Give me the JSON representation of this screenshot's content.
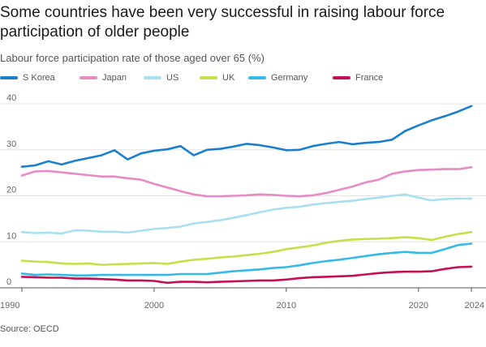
{
  "chart_data": {
    "type": "line",
    "title": "Some countries have been very successful in raising labour force participation of older people",
    "subtitle": "Labour force participation rate of those aged over 65 (%)",
    "source": "Source: OECD",
    "xlim": [
      1990,
      2024
    ],
    "ylim": [
      0,
      40
    ],
    "x_ticks": [
      1990,
      2000,
      2010,
      2020,
      2024
    ],
    "y_ticks": [
      0,
      10,
      20,
      30,
      40
    ],
    "grid": true,
    "legend_position": "top",
    "x": [
      1990,
      1991,
      1992,
      1993,
      1994,
      1995,
      1996,
      1997,
      1998,
      1999,
      2000,
      2001,
      2002,
      2003,
      2004,
      2005,
      2006,
      2007,
      2008,
      2009,
      2010,
      2011,
      2012,
      2013,
      2014,
      2015,
      2016,
      2017,
      2018,
      2019,
      2020,
      2021,
      2022,
      2023,
      2024
    ],
    "series": [
      {
        "name": "S Korea",
        "color": "#1a7fcc",
        "values": [
          26.3,
          26.6,
          27.5,
          26.8,
          27.6,
          28.2,
          28.8,
          29.9,
          27.9,
          29.2,
          29.8,
          30.1,
          30.8,
          28.8,
          30.0,
          30.2,
          30.7,
          31.3,
          31.0,
          30.5,
          29.9,
          30.0,
          30.8,
          31.3,
          31.7,
          31.2,
          31.5,
          31.7,
          32.2,
          34.1,
          35.3,
          36.4,
          37.3,
          38.3,
          39.5
        ]
      },
      {
        "name": "Japan",
        "color": "#e78ac6",
        "values": [
          24.4,
          25.3,
          25.4,
          25.1,
          24.8,
          24.5,
          24.2,
          24.2,
          23.8,
          23.5,
          22.6,
          21.8,
          21.0,
          20.3,
          19.9,
          19.9,
          20.0,
          20.1,
          20.3,
          20.2,
          20.0,
          19.9,
          20.1,
          20.6,
          21.3,
          22.0,
          22.9,
          23.5,
          24.8,
          25.3,
          25.6,
          25.7,
          25.8,
          25.8,
          26.2
        ]
      },
      {
        "name": "US",
        "color": "#a8e0f2",
        "values": [
          12.1,
          11.9,
          12.0,
          11.8,
          12.5,
          12.4,
          12.2,
          12.2,
          12.0,
          12.4,
          12.8,
          13.0,
          13.3,
          14.0,
          14.3,
          14.7,
          15.2,
          15.8,
          16.4,
          17.0,
          17.4,
          17.6,
          18.1,
          18.4,
          18.7,
          18.9,
          19.3,
          19.6,
          20.0,
          20.3,
          19.6,
          19.0,
          19.3,
          19.4,
          19.4
        ]
      },
      {
        "name": "UK",
        "color": "#c5e04a",
        "values": [
          5.9,
          5.7,
          5.6,
          5.3,
          5.2,
          5.3,
          5.0,
          5.1,
          5.2,
          5.3,
          5.4,
          5.2,
          5.7,
          6.1,
          6.3,
          6.6,
          6.8,
          7.1,
          7.4,
          7.8,
          8.4,
          8.8,
          9.2,
          9.8,
          10.2,
          10.5,
          10.6,
          10.7,
          10.8,
          11.0,
          10.8,
          10.4,
          11.1,
          11.7,
          12.1
        ]
      },
      {
        "name": "Germany",
        "color": "#35b9e6",
        "values": [
          3.1,
          2.8,
          2.9,
          2.8,
          2.7,
          2.7,
          2.8,
          2.8,
          2.8,
          2.8,
          2.8,
          2.8,
          3.0,
          3.0,
          3.0,
          3.3,
          3.6,
          3.8,
          4.0,
          4.3,
          4.5,
          4.9,
          5.4,
          5.8,
          6.1,
          6.5,
          6.9,
          7.3,
          7.6,
          7.8,
          7.6,
          7.6,
          8.4,
          9.3,
          9.6
        ]
      },
      {
        "name": "France",
        "color": "#c50f53",
        "values": [
          2.4,
          2.3,
          2.2,
          2.2,
          2.0,
          2.0,
          1.9,
          1.8,
          1.6,
          1.6,
          1.5,
          1.1,
          1.3,
          1.3,
          1.2,
          1.3,
          1.4,
          1.5,
          1.6,
          1.6,
          1.8,
          2.1,
          2.3,
          2.4,
          2.5,
          2.6,
          2.9,
          3.2,
          3.4,
          3.5,
          3.5,
          3.6,
          4.1,
          4.5,
          4.6
        ]
      }
    ]
  }
}
